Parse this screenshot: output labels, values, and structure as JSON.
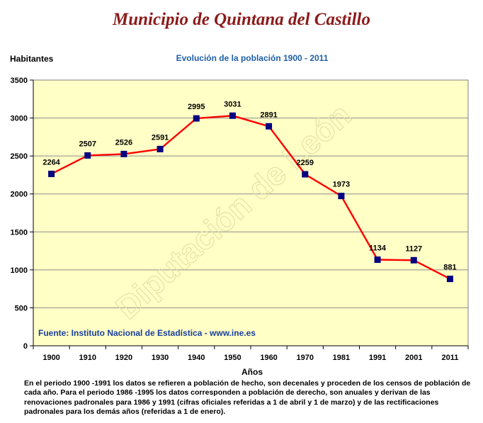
{
  "page": {
    "title": "Municipio de Quintana del Castillo",
    "footnote": "En el periodo 1900 -1991 los datos se refieren a población de hecho, son decenales y proceden de los censos de población de cada año. Para el periodo 1986 -1995 los datos corresponden a población de derecho, son anuales y derivan de las renovaciones padronales para 1986 y 1991 (cifras oficiales referidas a 1 de abril y 1 de marzo) y de las rectificaciones padronales para los demás años (referidas a 1 de enero)."
  },
  "chart_data": {
    "type": "line",
    "title": "Evolución de la población 1900 - 2011",
    "ylabel": "Habitantes",
    "xlabel": "Años",
    "categories": [
      "1900",
      "1910",
      "1920",
      "1930",
      "1940",
      "1950",
      "1960",
      "1970",
      "1981",
      "1991",
      "2001",
      "2011"
    ],
    "values": [
      2264,
      2507,
      2526,
      2591,
      2995,
      3031,
      2891,
      2259,
      1973,
      1134,
      1127,
      881
    ],
    "ylim": [
      0,
      3500
    ],
    "yticks": [
      0,
      500,
      1000,
      1500,
      2000,
      2500,
      3000,
      3500
    ],
    "grid": true,
    "source": "Fuente: Instituto Nacional de Estadística - www.ine.es",
    "watermark": "Diputación de León",
    "colors": {
      "plot_bg": "#ffffc6",
      "line": "#ff0000",
      "marker": "#000080",
      "source_text": "#1a3fa0",
      "title": "#8b1a1a",
      "subtitle": "#1f5fa8"
    }
  }
}
